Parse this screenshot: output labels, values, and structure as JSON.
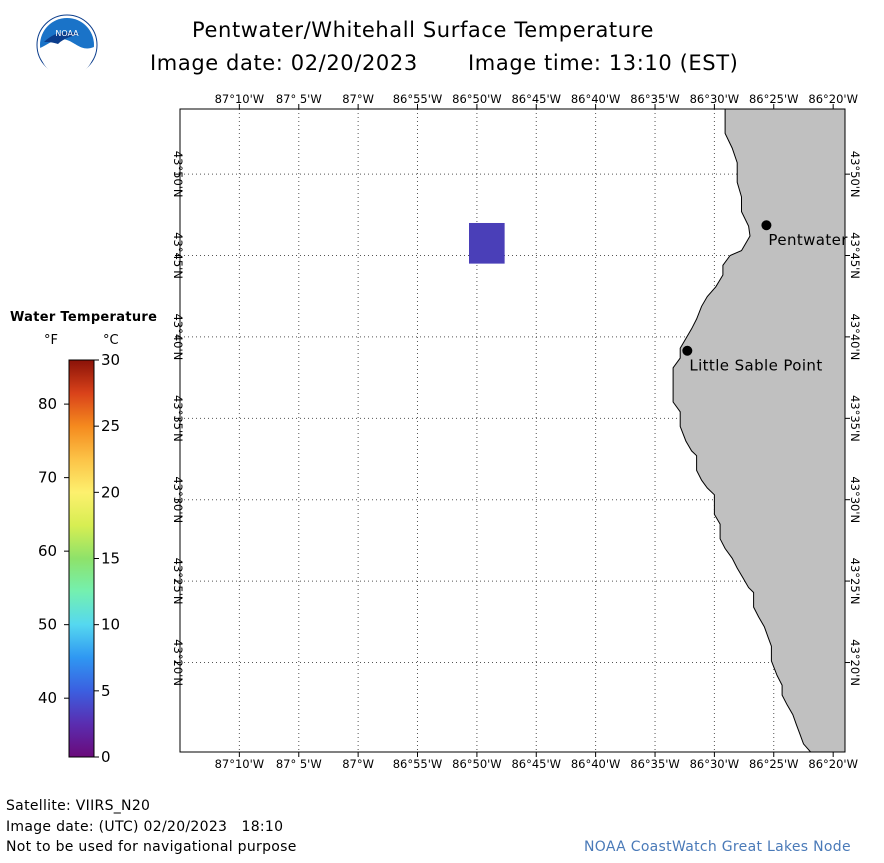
{
  "header": {
    "title": "Pentwater/Whitehall Surface Temperature",
    "image_date_label": "Image date: 02/20/2023",
    "image_time_label": "Image time: 13:10 (EST)",
    "logo_text": "NOAA",
    "logo_colors": {
      "sky": "#1a73c8",
      "wave": "#ffffff",
      "bird": "#0b3d8c"
    }
  },
  "map": {
    "extent": {
      "lon_west": -87.25,
      "lon_east": -86.3167,
      "lat_south": 43.2417,
      "lat_north": 43.9
    },
    "lon_ticks": [
      {
        "value": -87.1667,
        "label": "87°10'W"
      },
      {
        "value": -87.0833,
        "label": "87° 5'W"
      },
      {
        "value": -87.0,
        "label": "87°W"
      },
      {
        "value": -86.9167,
        "label": "86°55'W"
      },
      {
        "value": -86.8333,
        "label": "86°50'W"
      },
      {
        "value": -86.75,
        "label": "86°45'W"
      },
      {
        "value": -86.6667,
        "label": "86°40'W"
      },
      {
        "value": -86.5833,
        "label": "86°35'W"
      },
      {
        "value": -86.5,
        "label": "86°30'W"
      },
      {
        "value": -86.4167,
        "label": "86°25'W"
      },
      {
        "value": -86.3333,
        "label": "86°20'W"
      }
    ],
    "lat_ticks": [
      {
        "value": 43.3333,
        "label": "43°20'N"
      },
      {
        "value": 43.4167,
        "label": "43°25'N"
      },
      {
        "value": 43.5,
        "label": "43°30'N"
      },
      {
        "value": 43.5833,
        "label": "43°35'N"
      },
      {
        "value": 43.6667,
        "label": "43°40'N"
      },
      {
        "value": 43.75,
        "label": "43°45'N"
      },
      {
        "value": 43.8333,
        "label": "43°50'N"
      }
    ],
    "land_color": "#c0c0c0",
    "water_color": "#ffffff",
    "grid": "dotted",
    "shoreline": [
      [
        -86.485,
        43.9
      ],
      [
        -86.485,
        43.875
      ],
      [
        -86.475,
        43.86
      ],
      [
        -86.468,
        43.845
      ],
      [
        -86.468,
        43.825
      ],
      [
        -86.462,
        43.81
      ],
      [
        -86.462,
        43.795
      ],
      [
        -86.452,
        43.78
      ],
      [
        -86.45,
        43.77
      ],
      [
        -86.462,
        43.755
      ],
      [
        -86.478,
        43.75
      ],
      [
        -86.488,
        43.74
      ],
      [
        -86.488,
        43.73
      ],
      [
        -86.498,
        43.718
      ],
      [
        -86.51,
        43.708
      ],
      [
        -86.518,
        43.698
      ],
      [
        -86.525,
        43.685
      ],
      [
        -86.532,
        43.675
      ],
      [
        -86.54,
        43.665
      ],
      [
        -86.548,
        43.655
      ],
      [
        -86.548,
        43.645
      ],
      [
        -86.558,
        43.635
      ],
      [
        -86.558,
        43.6
      ],
      [
        -86.548,
        43.59
      ],
      [
        -86.548,
        43.575
      ],
      [
        -86.54,
        43.56
      ],
      [
        -86.532,
        43.55
      ],
      [
        -86.525,
        43.545
      ],
      [
        -86.525,
        43.53
      ],
      [
        -86.518,
        43.52
      ],
      [
        -86.51,
        43.512
      ],
      [
        -86.5,
        43.505
      ],
      [
        -86.5,
        43.485
      ],
      [
        -86.492,
        43.475
      ],
      [
        -86.492,
        43.46
      ],
      [
        -86.485,
        43.45
      ],
      [
        -86.475,
        43.44
      ],
      [
        -86.468,
        43.43
      ],
      [
        -86.46,
        43.42
      ],
      [
        -86.452,
        43.41
      ],
      [
        -86.445,
        43.405
      ],
      [
        -86.445,
        43.39
      ],
      [
        -86.438,
        43.38
      ],
      [
        -86.43,
        43.37
      ],
      [
        -86.425,
        43.36
      ],
      [
        -86.42,
        43.35
      ],
      [
        -86.42,
        43.335
      ],
      [
        -86.412,
        43.32
      ],
      [
        -86.405,
        43.31
      ],
      [
        -86.405,
        43.3
      ],
      [
        -86.398,
        43.29
      ],
      [
        -86.39,
        43.28
      ],
      [
        -86.385,
        43.27
      ],
      [
        -86.38,
        43.26
      ],
      [
        -86.375,
        43.25
      ],
      [
        -86.365,
        43.2417
      ]
    ],
    "places": [
      {
        "name": "Pentwater",
        "lon": -86.427,
        "lat": 43.781
      },
      {
        "name": "Little Sable Point",
        "lon": -86.538,
        "lat": 43.6525
      }
    ],
    "pixel_box": {
      "lon_min": -86.8444,
      "lon_max": -86.7944,
      "lat_min": 43.7417,
      "lat_max": 43.7833,
      "color": "#4a3fb8"
    }
  },
  "legend": {
    "title": "Water Temperature",
    "unit_f": "°F",
    "unit_c": "°C",
    "celsius_ticks": [
      "0",
      "5",
      "10",
      "15",
      "20",
      "25",
      "30"
    ],
    "fahrenheit_ticks": [
      "40",
      "50",
      "60",
      "70",
      "80"
    ],
    "fahrenheit_values": [
      40,
      50,
      60,
      70,
      80
    ],
    "range_c": [
      0,
      30
    ],
    "colormap": [
      "#6a0a7a",
      "#5a2db0",
      "#3b5fe0",
      "#2f97f2",
      "#55d8f0",
      "#74f0b0",
      "#8ee26a",
      "#d7ee52",
      "#fdf06e",
      "#fcc347",
      "#f58a1e",
      "#d9421a",
      "#8a1208"
    ]
  },
  "footer": {
    "satellite": "Satellite: VIIRS_N20",
    "utc_date": "Image date: (UTC) 02/20/2023   18:10",
    "disclaimer": "Not to be used for navigational purpose",
    "credit": "NOAA CoastWatch Great Lakes Node",
    "credit_color": "#4a7ab8"
  }
}
